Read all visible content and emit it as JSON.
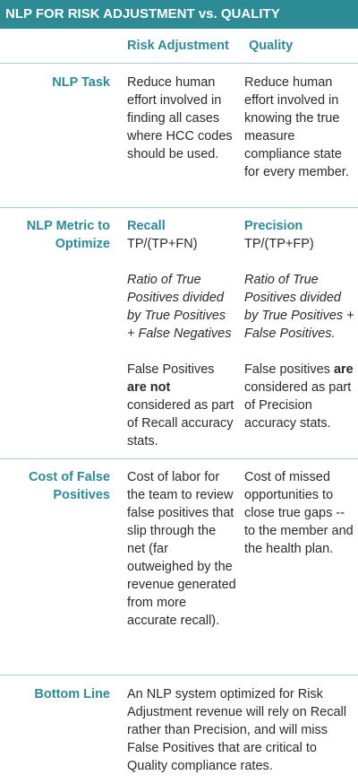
{
  "header": {
    "title": "NLP FOR RISK ADJUSTMENT vs. QUALITY"
  },
  "columns": [
    "Risk Adjustment",
    "Quality"
  ],
  "rows": [
    {
      "label": "NLP Task",
      "cells": [
        "Reduce human effort involved in finding all cases where HCC codes should be used.",
        "Reduce human effort involved in knowing  the true measure compliance state for every member."
      ]
    },
    {
      "label": "NLP Metric to Optimize",
      "cells": [
        {
          "name": "Recall",
          "formula": "TP/(TP+FN)",
          "definition": "Ratio of True Positives divided by True Positives + False Negatives",
          "note": [
            "False Positives ",
            "are not",
            " considered as part of Recall accuracy stats."
          ]
        },
        {
          "name": "Precision",
          "formula": "TP/(TP+FP)",
          "definition": "Ratio of True Positives divided by True Positives + False Positives.",
          "note": [
            "False positives ",
            "are",
            " considered as part of Precision accuracy stats."
          ]
        }
      ]
    },
    {
      "label": "Cost of False Positives",
      "cells": [
        "Cost of labor for the team to review false positives that slip through the net (far outweighed by the revenue generated from more accurate recall).",
        "Cost of missed opportunities to close true gaps -- to the member and the health plan."
      ]
    },
    {
      "label": "Bottom Line",
      "text": "An NLP system optimized for Risk Adjustment revenue will rely on Recall rather than Precision, and will miss False Positives that are critical to Quality compliance rates."
    }
  ]
}
